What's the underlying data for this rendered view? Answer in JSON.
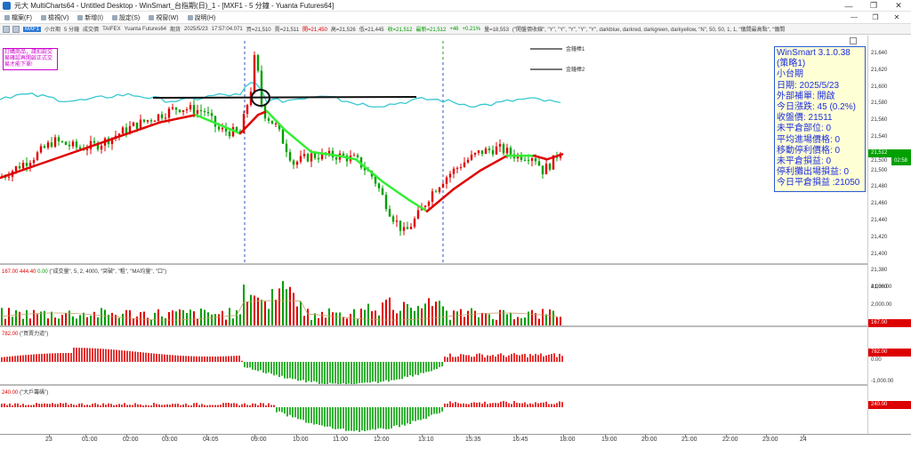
{
  "window": {
    "title": "元大 MultiCharts64 - Untitled Desktop - WinSmart_台指期(日)_1 - [MXF1 - 5 分鐘 - Yuanta Futures64]",
    "minimize": "—",
    "restore": "❐",
    "close": "✕"
  },
  "menu": {
    "items": [
      "檔案(F)",
      "檢視(V)",
      "新增(I)",
      "設定(S)",
      "視窗(W)",
      "說明(H)"
    ],
    "doc_minimize": "—",
    "doc_restore": "❐",
    "doc_close": "✕"
  },
  "toolbar": {
    "symbol_btn": "MXF1",
    "symbol_name": "小台期",
    "interval": "5 分鐘",
    "volume_label": "成交價",
    "exchange": "TAIFEX",
    "feed": "Yuanta Futures64",
    "period_label": "期貨",
    "date": "2025/5/23",
    "time": "17:57:04.071",
    "buy": "買=21,510",
    "ask": "賣=21,511",
    "open": "開=21,450",
    "high": "高=21,526",
    "low": "低=21,445",
    "last": "收=21,512",
    "latest": "最新=21,512",
    "change": "+46",
    "change_pct": "+0.21%",
    "total_vol": "量=18,553",
    "study": "(\"開盤價收線\", \"Y\", \"Y\", \"Y\", \"Y\", \"Y\", darkblue, darkred, darkgreen, darkyellow, \"N\", 50, 50, 1, 1, \"儀間最高點\", \"儀間"
  },
  "promo": "訂購商品，請扣款交易確認再開啟正式交易才能下單!",
  "legend": {
    "line1": "金鐘棒1",
    "line2": "金鐘棒2"
  },
  "infobox": {
    "version": "WinSmart 3.1.0.38",
    "strategy": "(策略1)",
    "instrument": "小台期",
    "date": "日期: 2025/5/23",
    "order": "外部補單: 開啟",
    "change": "今日漲跌: 45 (0.2%)",
    "close": "收盤價: 21511",
    "position": "未平倉部位: 0",
    "avg_entry": "平均進場價格: 0",
    "trail_stop": "移動停利價格: 0",
    "unreal": "未平倉損益: 0",
    "stop_exit": "停利攤出場損益: 0",
    "today_pnl": "今日平倉損益 :21050"
  },
  "price_axis": {
    "ticks": [
      "21,640",
      "21,620",
      "21,600",
      "21,580",
      "21,560",
      "21,540",
      "21,520",
      "21,500",
      "21,480",
      "21,460",
      "21,440",
      "21,420",
      "21,400",
      "21,380",
      "21,360"
    ],
    "last_price": "21,512",
    "last_price2": "21,500",
    "countdown": "02:58"
  },
  "vol_pane": {
    "header_value": "167.00",
    "header_value2": "444.40",
    "header_value3": "0.00",
    "study": "(\"成交量\", 5, 2, 4000, \"突破\", \"粗\", \"MA均量\", \"口\")",
    "ticks": [
      "4,000.00",
      "2,000.00"
    ],
    "current": "167.00"
  },
  "bs_pane": {
    "header_value": "782.00",
    "study": "(\"買賣力道\")",
    "current": "782.00",
    "zero": "0.00",
    "neg": "-1,000.00"
  },
  "big_pane": {
    "header_value": "240.00",
    "study": "(\"大戶籌碼\")",
    "current": "240.00"
  },
  "time_axis": [
    "23",
    "01:00",
    "02:00",
    "03:00",
    "04:05",
    "09:00",
    "10:00",
    "11:00",
    "12:00",
    "13:10",
    "15:35",
    "16:45",
    "18:00",
    "19:00",
    "20:00",
    "21:00",
    "22:00",
    "23:00",
    "24"
  ],
  "colors": {
    "up": "#e00000",
    "down": "#00a000",
    "ma_fast": "#e00000",
    "ma_slow": "#33ee33",
    "cyan": "#38c8d0",
    "session_line_blue": "#3050c8",
    "session_line_green": "#20a020",
    "price_label": "#00a000"
  }
}
